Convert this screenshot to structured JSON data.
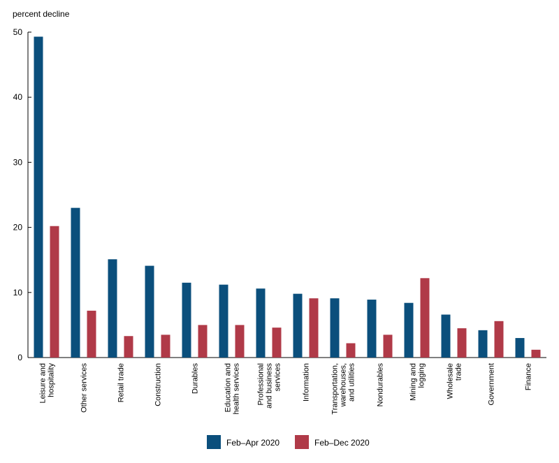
{
  "chart_data": {
    "type": "bar",
    "ylabel": "percent decline",
    "ylim": [
      0,
      50
    ],
    "yticks": [
      0,
      10,
      20,
      30,
      40,
      50
    ],
    "grid": false,
    "legend_placement": "bottom-center",
    "categories": [
      [
        "Leisure and",
        "hospitality"
      ],
      [
        "Other services"
      ],
      [
        "Retail trade"
      ],
      [
        "Construction"
      ],
      [
        "Durables"
      ],
      [
        "Education and",
        "health services"
      ],
      [
        "Professional",
        "and business",
        "services"
      ],
      [
        "Information"
      ],
      [
        "Transportation,",
        "warehouses,",
        "and utilities"
      ],
      [
        "Nondurables"
      ],
      [
        "Mining and",
        "logging"
      ],
      [
        "Wholesale",
        "trade"
      ],
      [
        "Government"
      ],
      [
        "Finance"
      ]
    ],
    "series": [
      {
        "name": "Feb–Apr 2020",
        "color": "#0b4f7c",
        "values": [
          49.3,
          23.0,
          15.1,
          14.1,
          11.5,
          11.2,
          10.6,
          9.8,
          9.1,
          8.9,
          8.4,
          6.6,
          4.2,
          3.0
        ]
      },
      {
        "name": "Feb–Dec 2020",
        "color": "#b03a48",
        "values": [
          20.2,
          7.2,
          3.3,
          3.5,
          5.0,
          5.0,
          4.6,
          9.1,
          2.2,
          3.5,
          12.2,
          4.5,
          5.6,
          1.2
        ]
      }
    ]
  }
}
